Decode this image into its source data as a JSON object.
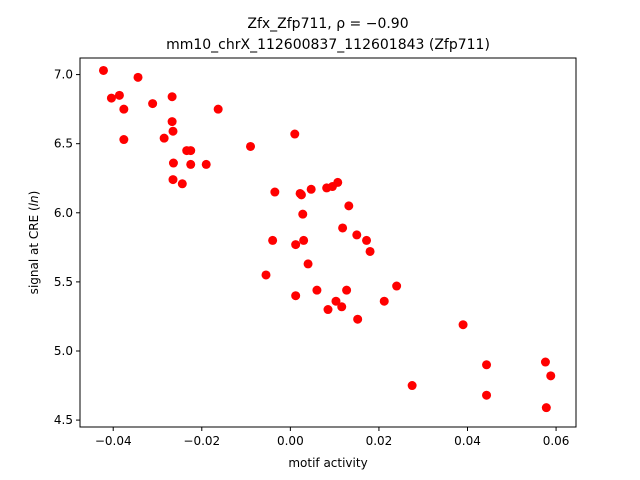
{
  "chart_data": {
    "type": "scatter",
    "title_line1": "Zfx_Zfp711, ρ = −0.90",
    "title_line2": "mm10_chrX_112600837_112601843 (Zfp711)",
    "xlabel": "motif activity",
    "ylabel": "signal at CRE (ln)",
    "ylabel_prefix": "signal at CRE (",
    "ylabel_italic": "ln",
    "ylabel_suffix": ")",
    "xlim": [
      -0.0475,
      0.0645
    ],
    "ylim": [
      4.45,
      7.12
    ],
    "xticks": [
      -0.04,
      -0.02,
      0.0,
      0.02,
      0.04,
      0.06
    ],
    "xtick_labels": [
      "−0.04",
      "−0.02",
      "0.00",
      "0.02",
      "0.04",
      "0.06"
    ],
    "yticks": [
      4.5,
      5.0,
      5.5,
      6.0,
      6.5,
      7.0
    ],
    "ytick_labels": [
      "4.5",
      "5.0",
      "5.5",
      "6.0",
      "6.5",
      "7.0"
    ],
    "grid": false,
    "marker_color": "#ff0000",
    "points": [
      {
        "x": -0.0422,
        "y": 7.03
      },
      {
        "x": -0.0404,
        "y": 6.83
      },
      {
        "x": -0.0386,
        "y": 6.85
      },
      {
        "x": -0.0376,
        "y": 6.75
      },
      {
        "x": -0.0376,
        "y": 6.53
      },
      {
        "x": -0.0344,
        "y": 6.98
      },
      {
        "x": -0.0311,
        "y": 6.79
      },
      {
        "x": -0.0285,
        "y": 6.54
      },
      {
        "x": -0.0267,
        "y": 6.84
      },
      {
        "x": -0.0267,
        "y": 6.66
      },
      {
        "x": -0.0265,
        "y": 6.59
      },
      {
        "x": -0.0264,
        "y": 6.36
      },
      {
        "x": -0.0265,
        "y": 6.24
      },
      {
        "x": -0.0244,
        "y": 6.21
      },
      {
        "x": -0.0234,
        "y": 6.45
      },
      {
        "x": -0.0225,
        "y": 6.45
      },
      {
        "x": -0.0225,
        "y": 6.35
      },
      {
        "x": -0.019,
        "y": 6.35
      },
      {
        "x": -0.0163,
        "y": 6.75
      },
      {
        "x": -0.009,
        "y": 6.48
      },
      {
        "x": -0.0055,
        "y": 5.55
      },
      {
        "x": -0.004,
        "y": 5.8
      },
      {
        "x": -0.0035,
        "y": 6.15
      },
      {
        "x": 0.001,
        "y": 6.57
      },
      {
        "x": 0.0012,
        "y": 5.77
      },
      {
        "x": 0.0012,
        "y": 5.4
      },
      {
        "x": 0.0022,
        "y": 6.14
      },
      {
        "x": 0.0025,
        "y": 6.13
      },
      {
        "x": 0.0028,
        "y": 5.99
      },
      {
        "x": 0.003,
        "y": 5.8
      },
      {
        "x": 0.004,
        "y": 5.63
      },
      {
        "x": 0.0047,
        "y": 6.17
      },
      {
        "x": 0.006,
        "y": 5.44
      },
      {
        "x": 0.0082,
        "y": 6.18
      },
      {
        "x": 0.0085,
        "y": 5.3
      },
      {
        "x": 0.0095,
        "y": 6.19
      },
      {
        "x": 0.0103,
        "y": 5.36
      },
      {
        "x": 0.0107,
        "y": 6.22
      },
      {
        "x": 0.0116,
        "y": 5.32
      },
      {
        "x": 0.0118,
        "y": 5.89
      },
      {
        "x": 0.0127,
        "y": 5.44
      },
      {
        "x": 0.0132,
        "y": 6.05
      },
      {
        "x": 0.015,
        "y": 5.84
      },
      {
        "x": 0.0152,
        "y": 5.23
      },
      {
        "x": 0.0172,
        "y": 5.8
      },
      {
        "x": 0.018,
        "y": 5.72
      },
      {
        "x": 0.0212,
        "y": 5.36
      },
      {
        "x": 0.024,
        "y": 5.47
      },
      {
        "x": 0.0275,
        "y": 4.75
      },
      {
        "x": 0.039,
        "y": 5.19
      },
      {
        "x": 0.0443,
        "y": 4.9
      },
      {
        "x": 0.0443,
        "y": 4.68
      },
      {
        "x": 0.0576,
        "y": 4.92
      },
      {
        "x": 0.0578,
        "y": 4.59
      },
      {
        "x": 0.0588,
        "y": 4.82
      }
    ]
  }
}
